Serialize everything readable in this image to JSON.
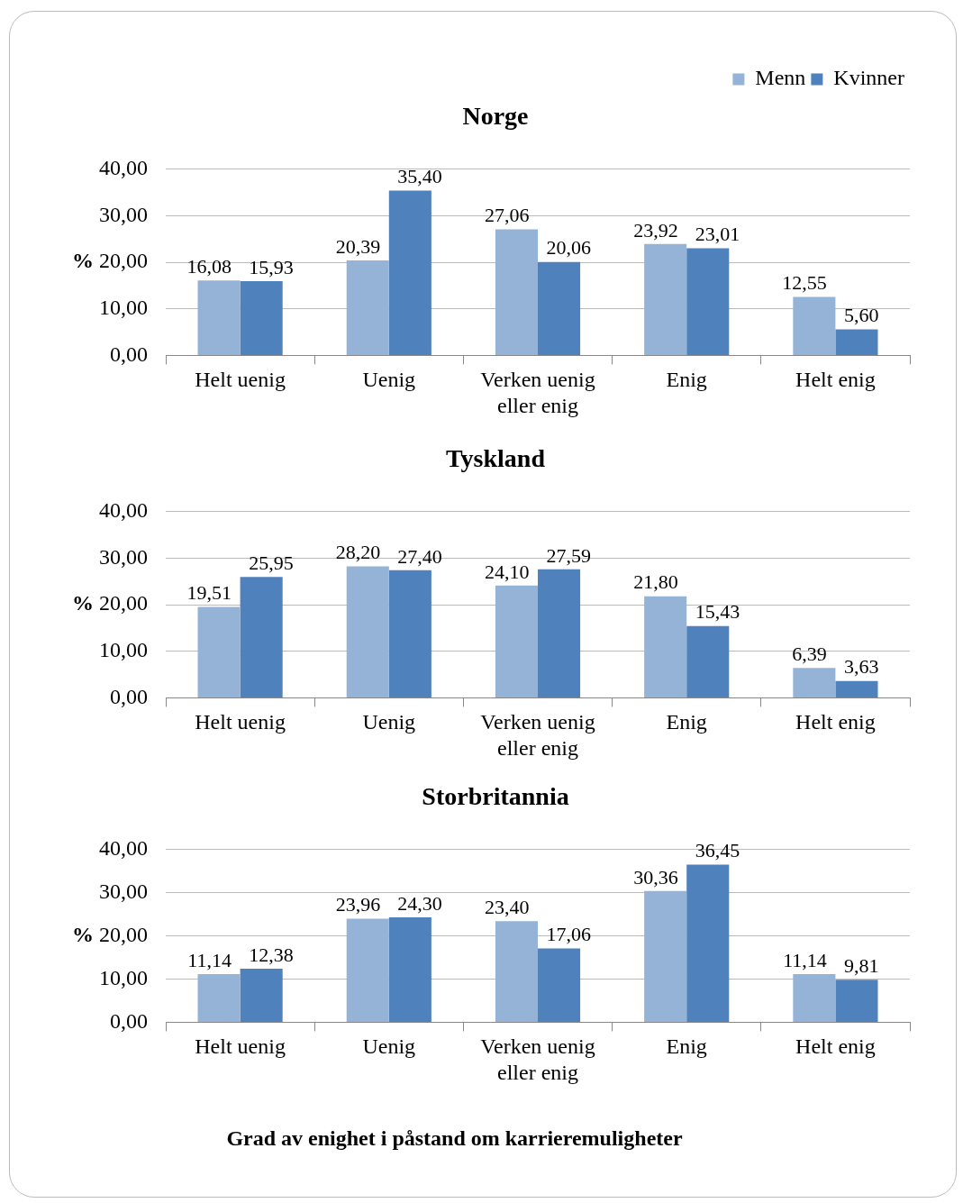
{
  "chart_data": [
    {
      "type": "bar",
      "title": "Norge",
      "ylabel": "%",
      "categories": [
        "Helt uenig",
        "Uenig",
        "Verken uenig eller enig",
        "Enig",
        "Helt enig"
      ],
      "series": [
        {
          "name": "Menn",
          "color": "#95b3d7",
          "values": [
            16.08,
            20.39,
            27.06,
            23.92,
            12.55
          ],
          "value_labels": [
            "16,08",
            "20,39",
            "27,06",
            "23,92",
            "12,55"
          ]
        },
        {
          "name": "Kvinner",
          "color": "#4f81bd",
          "values": [
            15.93,
            35.4,
            20.06,
            23.01,
            5.6
          ],
          "value_labels": [
            "15,93",
            "35,40",
            "20,06",
            "23,01",
            "5,60"
          ]
        }
      ],
      "ylim": [
        0,
        40
      ],
      "yticks": [
        {
          "value": 0,
          "label": "0,00"
        },
        {
          "value": 10,
          "label": "10,00"
        },
        {
          "value": 20,
          "label": "20,00"
        },
        {
          "value": 30,
          "label": "30,00"
        },
        {
          "value": 40,
          "label": "40,00"
        }
      ],
      "grid": "y",
      "legend": "top right"
    },
    {
      "type": "bar",
      "title": "Tyskland",
      "ylabel": "%",
      "categories": [
        "Helt uenig",
        "Uenig",
        "Verken uenig eller enig",
        "Enig",
        "Helt enig"
      ],
      "series": [
        {
          "color": "#95b3d7",
          "values": [
            19.51,
            28.2,
            24.1,
            21.8,
            6.39
          ],
          "value_labels": [
            "19,51",
            "28,20",
            "24,10",
            "21,80",
            "6,39"
          ]
        },
        {
          "color": "#4f81bd",
          "values": [
            25.95,
            27.4,
            27.59,
            15.43,
            3.63
          ],
          "value_labels": [
            "25,95",
            "27,40",
            "27,59",
            "15,43",
            "3,63"
          ]
        }
      ],
      "ylim": [
        0,
        40
      ],
      "yticks": [
        {
          "value": 0,
          "label": "0,00"
        },
        {
          "value": 10,
          "label": "10,00"
        },
        {
          "value": 20,
          "label": "20,00"
        },
        {
          "value": 30,
          "label": "30,00"
        },
        {
          "value": 40,
          "label": "40,00"
        }
      ],
      "grid": "y"
    },
    {
      "type": "bar",
      "title": "Storbritannia",
      "ylabel": "%",
      "categories": [
        "Helt uenig",
        "Uenig",
        "Verken uenig eller enig",
        "Enig",
        "Helt enig"
      ],
      "series": [
        {
          "color": "#95b3d7",
          "values": [
            11.14,
            23.96,
            23.4,
            30.36,
            11.14
          ],
          "value_labels": [
            "11,14",
            "23,96",
            "23,40",
            "30,36",
            "11,14"
          ]
        },
        {
          "color": "#4f81bd",
          "values": [
            12.38,
            24.3,
            17.06,
            36.45,
            9.81
          ],
          "value_labels": [
            "12,38",
            "24,30",
            "17,06",
            "36,45",
            "9,81"
          ]
        }
      ],
      "ylim": [
        0,
        40
      ],
      "yticks": [
        {
          "value": 0,
          "label": "0,00"
        },
        {
          "value": 10,
          "label": "10,00"
        },
        {
          "value": 20,
          "label": "20,00"
        },
        {
          "value": 30,
          "label": "30,00"
        },
        {
          "value": 40,
          "label": "40,00"
        }
      ],
      "grid": "y",
      "annotations": [
        "Grad av enighet i påstand om karrieremuligheter"
      ]
    }
  ]
}
